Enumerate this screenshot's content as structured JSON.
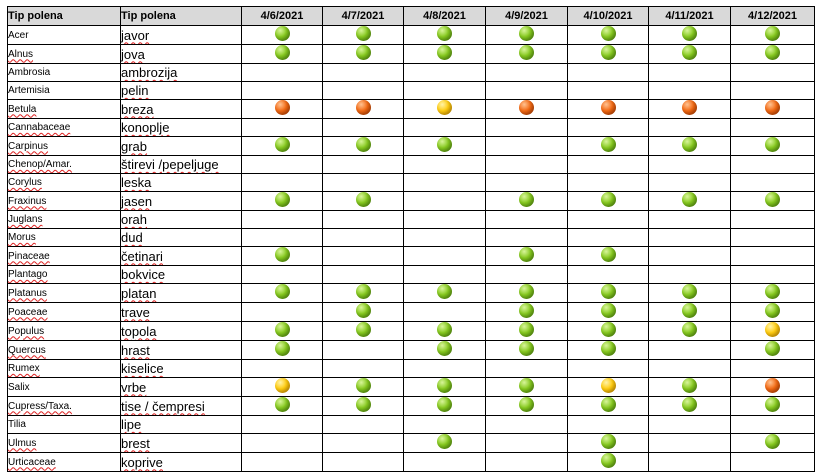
{
  "header": {
    "latin_label": "Tip polena",
    "local_label": "Tip polena",
    "dates": [
      "4/6/2021",
      "4/7/2021",
      "4/8/2021",
      "4/9/2021",
      "4/10/2021",
      "4/11/2021",
      "4/12/2021"
    ]
  },
  "legend_colors": {
    "g": "#86c91f",
    "y": "#ffcc10",
    "o": "#f36a14"
  },
  "rows": [
    {
      "latin": "Acer",
      "local": "javor",
      "levels": [
        "g",
        "g",
        "g",
        "g",
        "g",
        "g",
        "g"
      ]
    },
    {
      "latin": "Alnus",
      "local": "jova",
      "levels": [
        "g",
        "g",
        "g",
        "g",
        "g",
        "g",
        "g"
      ]
    },
    {
      "latin": "Ambrosia",
      "local": "ambrozija",
      "levels": [
        "",
        "",
        "",
        "",
        "",
        "",
        ""
      ]
    },
    {
      "latin": "Artemisia",
      "local": "pelin",
      "levels": [
        "",
        "",
        "",
        "",
        "",
        "",
        ""
      ]
    },
    {
      "latin": "Betula",
      "local": "breza",
      "levels": [
        "o",
        "o",
        "y",
        "o",
        "o",
        "o",
        "o"
      ]
    },
    {
      "latin": "Cannabaceae",
      "local": "konoplje",
      "levels": [
        "",
        "",
        "",
        "",
        "",
        "",
        ""
      ]
    },
    {
      "latin": "Carpinus",
      "local": "grab",
      "levels": [
        "g",
        "g",
        "g",
        "",
        "g",
        "g",
        "g"
      ]
    },
    {
      "latin": "Chenop/Amar.",
      "local": "štirevi /pepeljuge",
      "levels": [
        "",
        "",
        "",
        "",
        "",
        "",
        ""
      ]
    },
    {
      "latin": "Corylus",
      "local": "leska",
      "levels": [
        "",
        "",
        "",
        "",
        "",
        "",
        ""
      ]
    },
    {
      "latin": "Fraxinus",
      "local": "jasen",
      "levels": [
        "g",
        "g",
        "",
        "g",
        "g",
        "g",
        "g"
      ]
    },
    {
      "latin": "Juglans",
      "local": "orah",
      "levels": [
        "",
        "",
        "",
        "",
        "",
        "",
        ""
      ]
    },
    {
      "latin": "Morus",
      "local": "dud",
      "levels": [
        "",
        "",
        "",
        "",
        "",
        "",
        ""
      ]
    },
    {
      "latin": "Pinaceae",
      "local": "četinari",
      "levels": [
        "g",
        "",
        "",
        "g",
        "g",
        "",
        ""
      ]
    },
    {
      "latin": "Plantago",
      "local": "bokvice",
      "levels": [
        "",
        "",
        "",
        "",
        "",
        "",
        ""
      ]
    },
    {
      "latin": "Platanus",
      "local": "platan",
      "levels": [
        "g",
        "g",
        "g",
        "g",
        "g",
        "g",
        "g"
      ]
    },
    {
      "latin": "Poaceae",
      "local": "trave",
      "levels": [
        "",
        "g",
        "",
        "g",
        "g",
        "g",
        "g"
      ]
    },
    {
      "latin": "Populus",
      "local": "topola",
      "levels": [
        "g",
        "g",
        "g",
        "g",
        "g",
        "g",
        "y"
      ]
    },
    {
      "latin": "Quercus",
      "local": "hrast",
      "levels": [
        "g",
        "",
        "g",
        "g",
        "g",
        "",
        "g"
      ]
    },
    {
      "latin": "Rumex",
      "local": "kiselice",
      "levels": [
        "",
        "",
        "",
        "",
        "",
        "",
        ""
      ]
    },
    {
      "latin": "Salix",
      "local": "vrbe",
      "levels": [
        "y",
        "g",
        "g",
        "g",
        "y",
        "g",
        "o"
      ]
    },
    {
      "latin": "Cupress/Taxa.",
      "local": "tise / čempresi",
      "levels": [
        "g",
        "g",
        "g",
        "g",
        "g",
        "g",
        "g"
      ]
    },
    {
      "latin": "Tilia",
      "local": "lipe",
      "levels": [
        "",
        "",
        "",
        "",
        "",
        "",
        ""
      ]
    },
    {
      "latin": "Ulmus",
      "local": "brest",
      "levels": [
        "",
        "",
        "g",
        "",
        "g",
        "",
        "g"
      ]
    },
    {
      "latin": "Urticaceae",
      "local": "koprive",
      "levels": [
        "",
        "",
        "",
        "",
        "g",
        "",
        ""
      ]
    }
  ]
}
